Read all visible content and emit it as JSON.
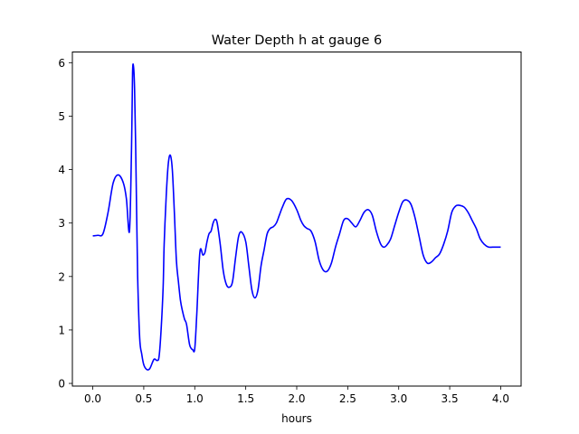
{
  "chart_data": {
    "type": "line",
    "title": "Water Depth h at gauge 6",
    "xlabel": "hours",
    "ylabel": "",
    "xlim": [
      -0.2,
      4.2
    ],
    "ylim": [
      -0.05,
      6.2
    ],
    "grid": false,
    "x_ticks": [
      0.0,
      0.5,
      1.0,
      1.5,
      2.0,
      2.5,
      3.0,
      3.5,
      4.0
    ],
    "x_tick_labels": [
      "0.0",
      "0.5",
      "1.0",
      "1.5",
      "2.0",
      "2.5",
      "3.0",
      "3.5",
      "4.0"
    ],
    "y_ticks": [
      0,
      1,
      2,
      3,
      4,
      5,
      6
    ],
    "y_tick_labels": [
      "0",
      "1",
      "2",
      "3",
      "4",
      "5",
      "6"
    ],
    "series": [
      {
        "color": "#0000ff",
        "x": [
          0.0,
          0.05,
          0.1,
          0.15,
          0.2,
          0.25,
          0.3,
          0.33,
          0.36,
          0.38,
          0.39,
          0.4,
          0.41,
          0.42,
          0.43,
          0.44,
          0.46,
          0.48,
          0.5,
          0.53,
          0.56,
          0.6,
          0.63,
          0.65,
          0.67,
          0.69,
          0.7,
          0.72,
          0.74,
          0.76,
          0.78,
          0.8,
          0.82,
          0.84,
          0.86,
          0.88,
          0.9,
          0.92,
          0.95,
          0.98,
          1.0,
          1.02,
          1.05,
          1.08,
          1.1,
          1.12,
          1.14,
          1.16,
          1.18,
          1.2,
          1.22,
          1.25,
          1.28,
          1.31,
          1.34,
          1.37,
          1.4,
          1.43,
          1.46,
          1.5,
          1.53,
          1.56,
          1.59,
          1.62,
          1.65,
          1.68,
          1.71,
          1.74,
          1.77,
          1.8,
          1.83,
          1.86,
          1.9,
          1.95,
          2.0,
          2.04,
          2.07,
          2.1,
          2.14,
          2.18,
          2.22,
          2.26,
          2.3,
          2.34,
          2.38,
          2.42,
          2.46,
          2.5,
          2.54,
          2.58,
          2.62,
          2.66,
          2.7,
          2.74,
          2.78,
          2.82,
          2.85,
          2.88,
          2.92,
          2.96,
          3.0,
          3.04,
          3.08,
          3.12,
          3.16,
          3.2,
          3.24,
          3.28,
          3.32,
          3.36,
          3.4,
          3.44,
          3.48,
          3.52,
          3.56,
          3.6,
          3.64,
          3.68,
          3.72,
          3.76,
          3.8,
          3.84,
          3.88,
          3.92,
          3.96,
          4.0
        ],
        "y": [
          2.76,
          2.77,
          2.8,
          3.2,
          3.75,
          3.9,
          3.75,
          3.45,
          2.85,
          4.4,
          5.8,
          5.92,
          5.5,
          4.5,
          3.2,
          2.0,
          0.85,
          0.55,
          0.35,
          0.26,
          0.28,
          0.45,
          0.43,
          0.5,
          1.0,
          1.8,
          2.6,
          3.5,
          4.1,
          4.27,
          4.0,
          3.2,
          2.3,
          1.9,
          1.55,
          1.35,
          1.2,
          1.1,
          0.72,
          0.63,
          0.65,
          1.3,
          2.45,
          2.4,
          2.45,
          2.65,
          2.8,
          2.85,
          3.0,
          3.07,
          3.0,
          2.6,
          2.1,
          1.85,
          1.8,
          1.9,
          2.35,
          2.75,
          2.83,
          2.65,
          2.2,
          1.75,
          1.6,
          1.75,
          2.2,
          2.5,
          2.8,
          2.9,
          2.93,
          3.0,
          3.15,
          3.3,
          3.45,
          3.42,
          3.25,
          3.05,
          2.95,
          2.9,
          2.85,
          2.65,
          2.3,
          2.12,
          2.1,
          2.25,
          2.55,
          2.8,
          3.05,
          3.08,
          3.0,
          2.93,
          3.05,
          3.2,
          3.25,
          3.15,
          2.85,
          2.62,
          2.55,
          2.58,
          2.7,
          2.95,
          3.2,
          3.4,
          3.43,
          3.35,
          3.1,
          2.75,
          2.4,
          2.25,
          2.27,
          2.35,
          2.42,
          2.6,
          2.85,
          3.2,
          3.32,
          3.33,
          3.3,
          3.2,
          3.05,
          2.9,
          2.7,
          2.6,
          2.55,
          2.55,
          2.55,
          2.55
        ]
      }
    ]
  }
}
